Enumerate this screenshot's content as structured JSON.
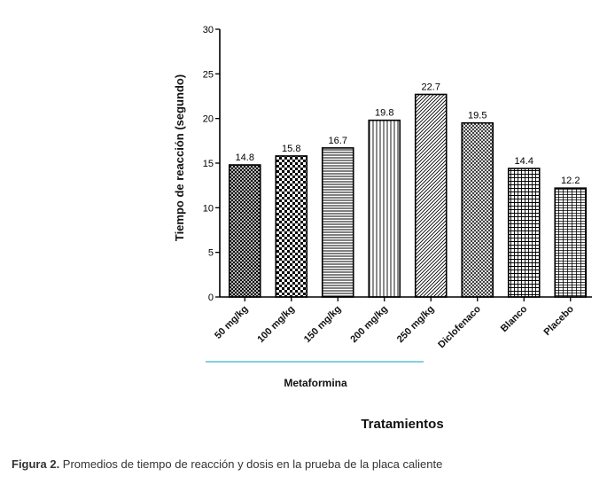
{
  "chart_data": {
    "type": "bar",
    "categories": [
      "50 mg/kg",
      "100 mg/kg",
      "150 mg/kg",
      "200 mg/kg",
      "250 mg/kg",
      "Diclofenaco",
      "Blanco",
      "Placebo"
    ],
    "values": [
      14.8,
      15.8,
      16.7,
      19.8,
      22.7,
      19.5,
      14.4,
      12.2
    ],
    "value_labels": [
      "14.8",
      "15.8",
      "16.7",
      "19.8",
      "22.7",
      "19.5",
      "14.4",
      "12.2"
    ],
    "ylabel": "Tiempo de reacción (segundo)",
    "xlabel": "Tratamientos",
    "ylim": [
      0,
      30
    ],
    "yticks": [
      0,
      5,
      10,
      15,
      20,
      25,
      30
    ],
    "group": {
      "label": "Metaformina",
      "first_index": 0,
      "last_index": 4,
      "line_color": "#5bbfd6"
    },
    "bar_patterns": [
      "dense-crosshatch",
      "checker",
      "horizontal-lines",
      "vertical-lines",
      "diagonal-lines",
      "diagonal-crosshatch",
      "grid",
      "fine-horizontal-grid"
    ],
    "grid": false
  },
  "caption": {
    "label": "Figura 2.",
    "text": " Promedios de tiempo de reacción y dosis en la prueba de la placa caliente"
  }
}
